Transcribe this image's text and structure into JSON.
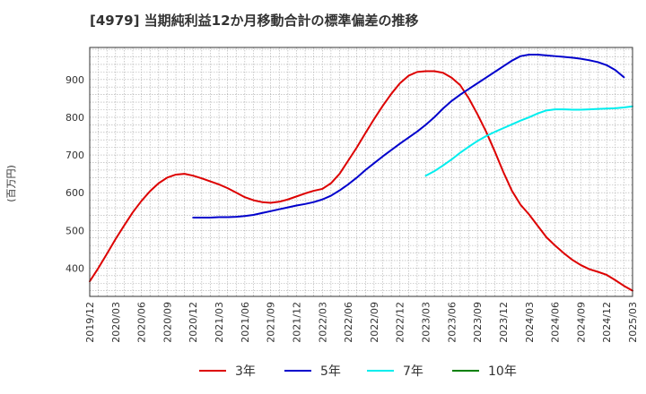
{
  "title": "[4979]  当期純利益12か月移動合計の標準偏差の推移",
  "chart_data": {
    "type": "line",
    "title": "[4979]  当期純利益12か月移動合計の標準偏差の推移",
    "ylabel": "(百万円)",
    "xlabel": "",
    "ylim": [
      325,
      985
    ],
    "yticks": [
      400,
      500,
      600,
      700,
      800,
      900
    ],
    "x_start": "2019-12",
    "x_end": "2025-03",
    "xticks": [
      "2019/12",
      "2020/03",
      "2020/06",
      "2020/09",
      "2020/12",
      "2021/03",
      "2021/06",
      "2021/09",
      "2021/12",
      "2022/03",
      "2022/06",
      "2022/09",
      "2022/12",
      "2023/03",
      "2023/06",
      "2023/09",
      "2023/12",
      "2024/03",
      "2024/06",
      "2024/09",
      "2024/12",
      "2025/03"
    ],
    "grid": true,
    "legend_position": "bottom",
    "series": [
      {
        "name": "3年",
        "color": "#dd0000",
        "points": [
          [
            "2019-12",
            365
          ],
          [
            "2020-01",
            400
          ],
          [
            "2020-02",
            438
          ],
          [
            "2020-03",
            477
          ],
          [
            "2020-04",
            513
          ],
          [
            "2020-05",
            548
          ],
          [
            "2020-06",
            578
          ],
          [
            "2020-07",
            604
          ],
          [
            "2020-08",
            625
          ],
          [
            "2020-09",
            640
          ],
          [
            "2020-10",
            648
          ],
          [
            "2020-11",
            650
          ],
          [
            "2020-12",
            645
          ],
          [
            "2021-01",
            638
          ],
          [
            "2021-02",
            630
          ],
          [
            "2021-03",
            622
          ],
          [
            "2021-04",
            612
          ],
          [
            "2021-05",
            600
          ],
          [
            "2021-06",
            588
          ],
          [
            "2021-07",
            580
          ],
          [
            "2021-08",
            575
          ],
          [
            "2021-09",
            573
          ],
          [
            "2021-10",
            576
          ],
          [
            "2021-11",
            582
          ],
          [
            "2021-12",
            590
          ],
          [
            "2022-01",
            598
          ],
          [
            "2022-02",
            605
          ],
          [
            "2022-03",
            610
          ],
          [
            "2022-04",
            625
          ],
          [
            "2022-05",
            650
          ],
          [
            "2022-06",
            685
          ],
          [
            "2022-07",
            720
          ],
          [
            "2022-08",
            758
          ],
          [
            "2022-09",
            795
          ],
          [
            "2022-10",
            830
          ],
          [
            "2022-11",
            862
          ],
          [
            "2022-12",
            890
          ],
          [
            "2023-01",
            910
          ],
          [
            "2023-02",
            920
          ],
          [
            "2023-03",
            922
          ],
          [
            "2023-04",
            922
          ],
          [
            "2023-05",
            918
          ],
          [
            "2023-06",
            905
          ],
          [
            "2023-07",
            885
          ],
          [
            "2023-08",
            850
          ],
          [
            "2023-09",
            808
          ],
          [
            "2023-10",
            762
          ],
          [
            "2023-11",
            710
          ],
          [
            "2023-12",
            655
          ],
          [
            "2024-01",
            605
          ],
          [
            "2024-02",
            568
          ],
          [
            "2024-03",
            542
          ],
          [
            "2024-04",
            512
          ],
          [
            "2024-05",
            482
          ],
          [
            "2024-06",
            460
          ],
          [
            "2024-07",
            440
          ],
          [
            "2024-08",
            422
          ],
          [
            "2024-09",
            408
          ],
          [
            "2024-10",
            397
          ],
          [
            "2024-11",
            390
          ],
          [
            "2024-12",
            382
          ],
          [
            "2025-01",
            368
          ],
          [
            "2025-02",
            353
          ],
          [
            "2025-03",
            340
          ]
        ]
      },
      {
        "name": "5年",
        "color": "#0000cc",
        "points": [
          [
            "2020-12",
            534
          ],
          [
            "2021-01",
            534
          ],
          [
            "2021-02",
            534
          ],
          [
            "2021-03",
            535
          ],
          [
            "2021-04",
            535
          ],
          [
            "2021-05",
            536
          ],
          [
            "2021-06",
            538
          ],
          [
            "2021-07",
            541
          ],
          [
            "2021-08",
            546
          ],
          [
            "2021-09",
            551
          ],
          [
            "2021-10",
            556
          ],
          [
            "2021-11",
            561
          ],
          [
            "2021-12",
            566
          ],
          [
            "2022-01",
            570
          ],
          [
            "2022-02",
            575
          ],
          [
            "2022-03",
            582
          ],
          [
            "2022-04",
            592
          ],
          [
            "2022-05",
            606
          ],
          [
            "2022-06",
            622
          ],
          [
            "2022-07",
            640
          ],
          [
            "2022-08",
            660
          ],
          [
            "2022-09",
            678
          ],
          [
            "2022-10",
            696
          ],
          [
            "2022-11",
            713
          ],
          [
            "2022-12",
            730
          ],
          [
            "2023-01",
            746
          ],
          [
            "2023-02",
            762
          ],
          [
            "2023-03",
            780
          ],
          [
            "2023-04",
            800
          ],
          [
            "2023-05",
            823
          ],
          [
            "2023-06",
            843
          ],
          [
            "2023-07",
            860
          ],
          [
            "2023-08",
            875
          ],
          [
            "2023-09",
            890
          ],
          [
            "2023-10",
            905
          ],
          [
            "2023-11",
            920
          ],
          [
            "2023-12",
            935
          ],
          [
            "2024-01",
            950
          ],
          [
            "2024-02",
            962
          ],
          [
            "2024-03",
            966
          ],
          [
            "2024-04",
            966
          ],
          [
            "2024-05",
            964
          ],
          [
            "2024-06",
            962
          ],
          [
            "2024-07",
            960
          ],
          [
            "2024-08",
            958
          ],
          [
            "2024-09",
            955
          ],
          [
            "2024-10",
            951
          ],
          [
            "2024-11",
            946
          ],
          [
            "2024-12",
            938
          ],
          [
            "2025-01",
            925
          ],
          [
            "2025-02",
            906
          ]
        ]
      },
      {
        "name": "7年",
        "color": "#00eeee",
        "points": [
          [
            "2023-03",
            645
          ],
          [
            "2023-04",
            657
          ],
          [
            "2023-05",
            672
          ],
          [
            "2023-06",
            688
          ],
          [
            "2023-07",
            706
          ],
          [
            "2023-08",
            722
          ],
          [
            "2023-09",
            737
          ],
          [
            "2023-10",
            750
          ],
          [
            "2023-11",
            761
          ],
          [
            "2023-12",
            771
          ],
          [
            "2024-01",
            781
          ],
          [
            "2024-02",
            791
          ],
          [
            "2024-03",
            800
          ],
          [
            "2024-04",
            810
          ],
          [
            "2024-05",
            818
          ],
          [
            "2024-06",
            821
          ],
          [
            "2024-07",
            821
          ],
          [
            "2024-08",
            820
          ],
          [
            "2024-09",
            820
          ],
          [
            "2024-10",
            821
          ],
          [
            "2024-11",
            822
          ],
          [
            "2024-12",
            823
          ],
          [
            "2025-01",
            824
          ],
          [
            "2025-02",
            826
          ],
          [
            "2025-03",
            829
          ]
        ]
      },
      {
        "name": "10年",
        "color": "#008000",
        "points": []
      }
    ]
  }
}
